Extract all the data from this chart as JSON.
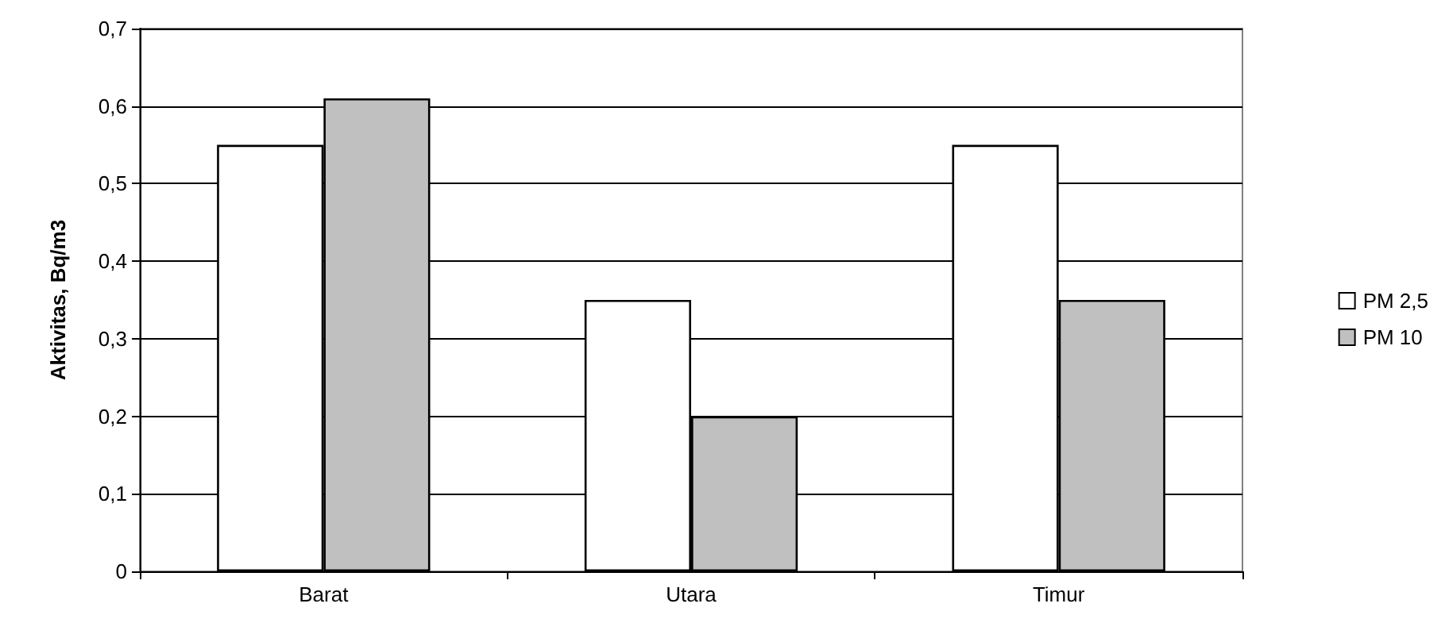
{
  "chart_data": {
    "type": "bar",
    "ylabel": "Aktivitas, Bq/m3",
    "categories": [
      "Barat",
      "Utara",
      "Timur"
    ],
    "series": [
      {
        "name": "PM 2,5",
        "color": "#ffffff",
        "values": [
          0.55,
          0.35,
          0.55
        ]
      },
      {
        "name": "PM 10",
        "color": "#c0c0c0",
        "values": [
          0.61,
          0.2,
          0.35
        ]
      }
    ],
    "ylim": [
      0,
      0.7
    ],
    "yticks": [
      0,
      {
        "value": 0.1,
        "label": "0,1"
      },
      {
        "value": 0.2,
        "label": "0,2"
      },
      {
        "value": 0.3,
        "label": "0,3"
      },
      {
        "value": 0.4,
        "label": "0,4"
      },
      {
        "value": 0.5,
        "label": "0,5"
      },
      {
        "value": 0.6,
        "label": "0,6"
      },
      {
        "value": 0.7,
        "label": "0,7"
      }
    ],
    "grid": "y",
    "legend": "right"
  }
}
